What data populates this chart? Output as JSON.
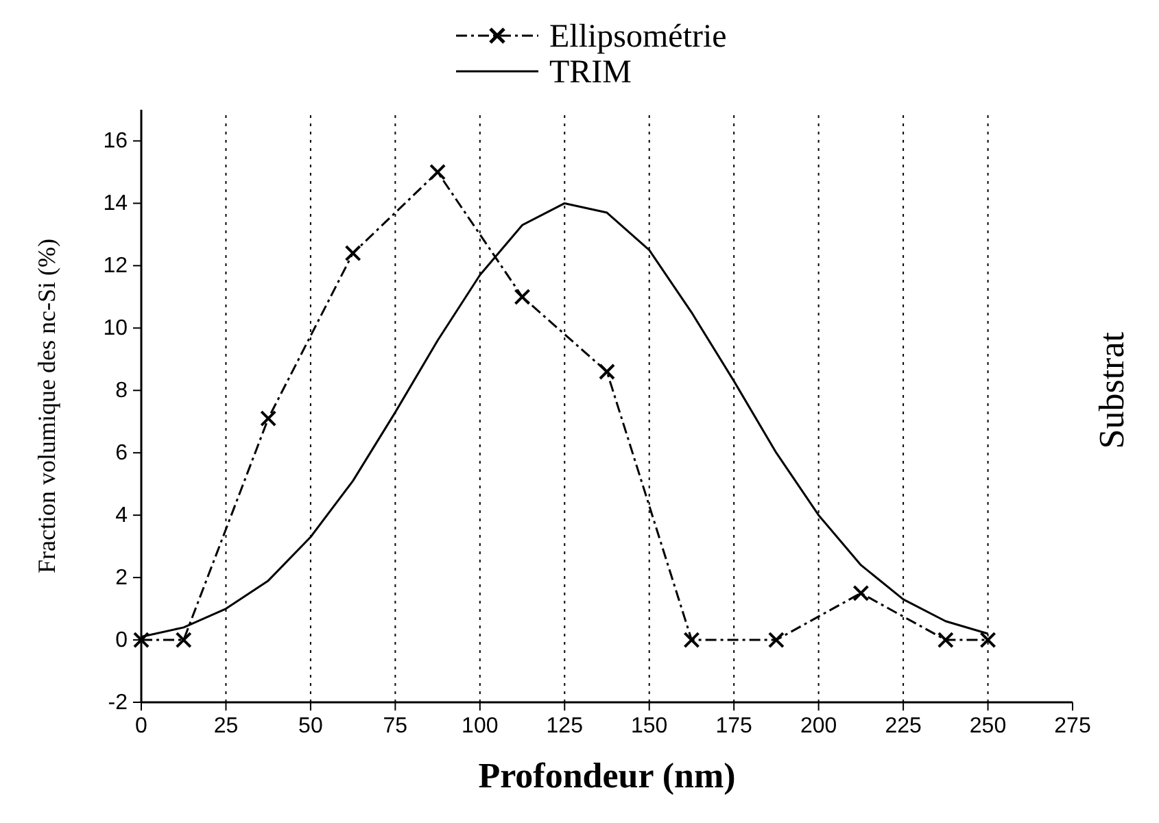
{
  "chart_data": {
    "type": "line",
    "xlabel": "Profondeur (nm)",
    "ylabel": "Fraction volumique des nc-Si (%)",
    "xlim": [
      0,
      275
    ],
    "xticks": [
      0,
      25,
      50,
      75,
      100,
      125,
      150,
      175,
      200,
      225,
      250,
      275
    ],
    "ylim": [
      -2,
      17
    ],
    "yticks": [
      -2,
      0,
      2,
      4,
      6,
      8,
      10,
      12,
      14,
      16
    ],
    "grid": "x",
    "legend": "top",
    "annotations": [
      "Substrat"
    ],
    "series": [
      {
        "name": "Ellipsométrie",
        "color": "#000000",
        "line_style": "dashed",
        "marker": "cross",
        "x": [
          0,
          12.5,
          37.5,
          62.5,
          87.5,
          112.5,
          137.5,
          162.5,
          187.5,
          212.5,
          237.5,
          250
        ],
        "values": [
          0,
          0,
          7.1,
          12.4,
          15,
          11,
          8.6,
          0,
          0,
          1.5,
          0,
          0
        ]
      },
      {
        "name": "TRIM",
        "color": "#000000",
        "line_style": "solid",
        "marker": "none",
        "x": [
          0,
          12.5,
          25,
          37.5,
          50,
          62.5,
          75,
          87.5,
          100,
          112.5,
          125,
          137.5,
          150,
          162.5,
          175,
          187.5,
          200,
          212.5,
          225,
          237.5,
          250
        ],
        "values": [
          0.1,
          0.4,
          1.0,
          1.9,
          3.3,
          5.1,
          7.3,
          9.6,
          11.7,
          13.3,
          14.0,
          13.7,
          12.5,
          10.5,
          8.3,
          6.0,
          4.0,
          2.4,
          1.3,
          0.6,
          0.2
        ]
      }
    ]
  }
}
